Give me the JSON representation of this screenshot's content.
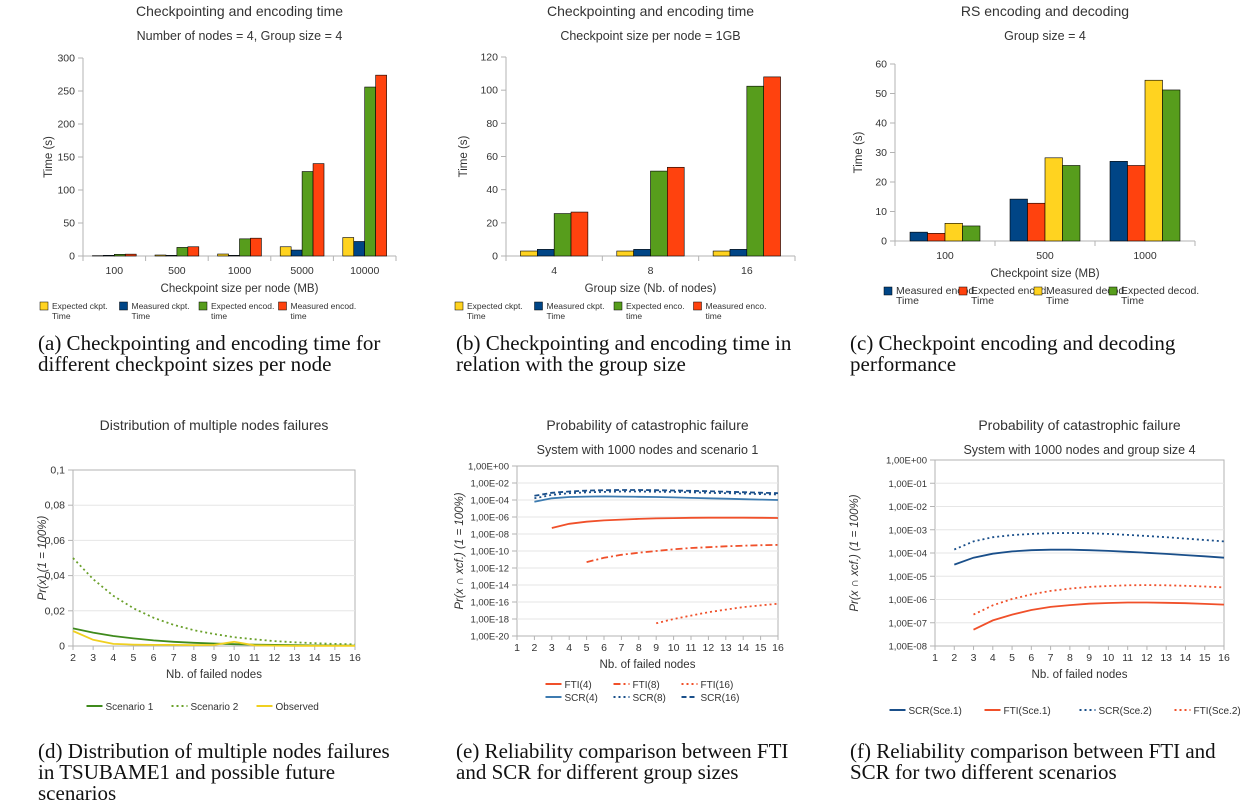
{
  "captions": [
    "(a) Checkpointing and encoding time for different checkpoint sizes per node",
    "(b) Checkpointing and encoding time in relation with the group size",
    "(c) Checkpoint encoding and decoding performance",
    "(d) Distribution of multiple nodes failures in TSUBAME1 and possible future scenarios",
    "(e) Reliability comparison between FTI and SCR for different group sizes",
    "(f) Reliability comparison between FTI and SCR for two different scenarios"
  ],
  "colors": {
    "yellow": "#ffd320",
    "blue": "#004586",
    "green": "#579d1c",
    "red": "#ff420e",
    "dgreen": "#3f8a1c",
    "lgreen": "#6aa02a",
    "lyellow": "#f0d020",
    "fred": "#f0502a",
    "sblue": "#3d7bb0",
    "dblue": "#1a4f8a"
  },
  "chart_data": [
    {
      "type": "bar",
      "title": "Checkpointing and encoding time",
      "subtitle": "Number of nodes = 4, Group size = 4",
      "xlabel": "Checkpoint size per node (MB)",
      "ylabel": "Time (s)",
      "ylim": [
        0,
        300
      ],
      "yticks": [
        "0",
        "50",
        "100",
        "150",
        "200",
        "250",
        "300"
      ],
      "categories": [
        "100",
        "500",
        "1000",
        "5000",
        "10000"
      ],
      "series": [
        {
          "name": "Expected ckpt. Time",
          "color": "#ffd320",
          "values": [
            0.5,
            1.5,
            3,
            14,
            28
          ]
        },
        {
          "name": "Measured ckpt. Time",
          "color": "#004586",
          "values": [
            1,
            1,
            1,
            9,
            22
          ]
        },
        {
          "name": "Expected encod. time",
          "color": "#579d1c",
          "values": [
            2.5,
            13,
            26,
            128,
            256
          ]
        },
        {
          "name": "Measured encod. time",
          "color": "#ff420e",
          "values": [
            2.8,
            14,
            27,
            140,
            274
          ]
        }
      ]
    },
    {
      "type": "bar",
      "title": "Checkpointing and encoding time",
      "subtitle": "Checkpoint size per node = 1GB",
      "xlabel": "Group size (Nb. of nodes)",
      "ylabel": "Time (s)",
      "ylim": [
        0,
        120
      ],
      "yticks": [
        "0",
        "20",
        "40",
        "60",
        "80",
        "100",
        "120"
      ],
      "categories": [
        "4",
        "8",
        "16"
      ],
      "series": [
        {
          "name": "Expected ckpt. Time",
          "color": "#ffd320",
          "values": [
            3,
            3,
            3
          ]
        },
        {
          "name": "Measured ckpt. Time",
          "color": "#004586",
          "values": [
            4,
            4,
            4
          ]
        },
        {
          "name": "Expected enco. time",
          "color": "#579d1c",
          "values": [
            25.6,
            51.2,
            102.4
          ]
        },
        {
          "name": "Measured enco. time",
          "color": "#ff420e",
          "values": [
            26.5,
            53.5,
            108
          ]
        }
      ]
    },
    {
      "type": "bar",
      "title": "RS encoding and decoding",
      "subtitle": "Group size = 4",
      "xlabel": "Checkpoint size (MB)",
      "ylabel": "Time (s)",
      "ylim": [
        0,
        60
      ],
      "yticks": [
        "0",
        "10",
        "20",
        "30",
        "40",
        "50",
        "60"
      ],
      "categories": [
        "100",
        "500",
        "1000"
      ],
      "series": [
        {
          "name": "Measured encod. Time",
          "color": "#004586",
          "values": [
            3,
            14.2,
            27
          ]
        },
        {
          "name": "Expected encod. Time",
          "color": "#ff420e",
          "values": [
            2.6,
            12.8,
            25.6
          ]
        },
        {
          "name": "Measured decod. Time",
          "color": "#ffd320",
          "values": [
            6,
            28.2,
            54.5
          ]
        },
        {
          "name": "Expected decod. Time",
          "color": "#579d1c",
          "values": [
            5.1,
            25.6,
            51.2
          ]
        }
      ]
    },
    {
      "type": "line",
      "title": "Distribution of multiple nodes failures",
      "subtitle": "",
      "xlabel": "Nb. of failed nodes",
      "ylabel": "Pr(x) (1 = 100%)",
      "x": [
        2,
        3,
        4,
        5,
        6,
        7,
        8,
        9,
        10,
        11,
        12,
        13,
        14,
        15,
        16
      ],
      "xticks": [
        "2",
        "3",
        "4",
        "5",
        "6",
        "7",
        "8",
        "9",
        "10",
        "11",
        "12",
        "13",
        "14",
        "15",
        "16"
      ],
      "ylim": [
        0,
        0.1
      ],
      "yticks": [
        "0",
        "0,02",
        "0,04",
        "0,06",
        "0,08",
        "0,1"
      ],
      "series": [
        {
          "name": "Scenario 1",
          "color": "#3f8a1c",
          "dash": "",
          "values": [
            0.01,
            0.0076,
            0.0057,
            0.0043,
            0.0032,
            0.0024,
            0.0018,
            0.0014,
            0.001,
            0.0008,
            0.0006,
            0.00045,
            0.00034,
            0.00026,
            0.0002
          ]
        },
        {
          "name": "Scenario 2",
          "color": "#6aa02a",
          "dash": "2,3",
          "values": [
            0.05,
            0.038,
            0.0285,
            0.0215,
            0.016,
            0.012,
            0.009,
            0.0068,
            0.005,
            0.0038,
            0.0028,
            0.0021,
            0.0016,
            0.0012,
            0.0009
          ]
        },
        {
          "name": "Observed",
          "color": "#f0d020",
          "dash": "",
          "values": [
            0.0085,
            0.0035,
            0.0012,
            0.0008,
            0.0006,
            0.0006,
            0.0005,
            0.0006,
            0.0024,
            0.0004,
            0.0002,
            0.0001,
            0.0001,
            0.0001,
            0.0001
          ]
        }
      ],
      "legend": "bottom"
    },
    {
      "type": "line",
      "title": "Probability of catastrophic failure",
      "subtitle": "System with 1000 nodes and scenario 1",
      "xlabel": "Nb. of failed nodes",
      "ylabel": "Pr(x ∩ xcf.) (1 = 100%)",
      "yscale": "log",
      "x": [
        1,
        2,
        3,
        4,
        5,
        6,
        7,
        8,
        9,
        10,
        11,
        12,
        13,
        14,
        15,
        16
      ],
      "xticks": [
        "1",
        "2",
        "3",
        "4",
        "5",
        "6",
        "7",
        "8",
        "9",
        "10",
        "11",
        "12",
        "13",
        "14",
        "15",
        "16"
      ],
      "ylim": [
        -20,
        0
      ],
      "yticks": [
        "1,00E-20",
        "1,00E-18",
        "1,00E-16",
        "1,00E-14",
        "1,00E-12",
        "1,00E-10",
        "1,00E-08",
        "1,00E-06",
        "1,00E-04",
        "1,00E-02",
        "1,00E+00"
      ],
      "series": [
        {
          "name": "FTI(4)",
          "color": "#f0502a",
          "dash": "",
          "points": [
            [
              3,
              -7.3
            ],
            [
              4,
              -6.8
            ],
            [
              5,
              -6.55
            ],
            [
              6,
              -6.4
            ],
            [
              7,
              -6.3
            ],
            [
              8,
              -6.22
            ],
            [
              9,
              -6.17
            ],
            [
              10,
              -6.13
            ],
            [
              11,
              -6.1
            ],
            [
              12,
              -6.08
            ],
            [
              13,
              -6.08
            ],
            [
              14,
              -6.08
            ],
            [
              15,
              -6.1
            ],
            [
              16,
              -6.12
            ]
          ]
        },
        {
          "name": "FTI(8)",
          "color": "#f0502a",
          "dash": "7,3,2,3",
          "points": [
            [
              5,
              -11.3
            ],
            [
              6,
              -10.8
            ],
            [
              7,
              -10.45
            ],
            [
              8,
              -10.2
            ],
            [
              9,
              -10.0
            ],
            [
              10,
              -9.8
            ],
            [
              11,
              -9.65
            ],
            [
              12,
              -9.55
            ],
            [
              13,
              -9.45
            ],
            [
              14,
              -9.38
            ],
            [
              15,
              -9.32
            ],
            [
              16,
              -9.28
            ]
          ]
        },
        {
          "name": "FTI(16)",
          "color": "#f0502a",
          "dash": "2,3",
          "points": [
            [
              9,
              -18.5
            ],
            [
              10,
              -18.0
            ],
            [
              11,
              -17.6
            ],
            [
              12,
              -17.2
            ],
            [
              13,
              -16.9
            ],
            [
              14,
              -16.6
            ],
            [
              15,
              -16.4
            ],
            [
              16,
              -16.2
            ]
          ]
        },
        {
          "name": "SCR(4)",
          "color": "#3d7bb0",
          "dash": "",
          "points": [
            [
              2,
              -4.2
            ],
            [
              3,
              -3.8
            ],
            [
              4,
              -3.65
            ],
            [
              5,
              -3.6
            ],
            [
              6,
              -3.58
            ],
            [
              7,
              -3.6
            ],
            [
              8,
              -3.62
            ],
            [
              9,
              -3.65
            ],
            [
              10,
              -3.7
            ],
            [
              11,
              -3.75
            ],
            [
              12,
              -3.8
            ],
            [
              13,
              -3.85
            ],
            [
              14,
              -3.9
            ],
            [
              15,
              -3.95
            ],
            [
              16,
              -4.0
            ]
          ]
        },
        {
          "name": "SCR(8)",
          "color": "#1a4f8a",
          "dash": "2,3",
          "points": [
            [
              2,
              -3.8
            ],
            [
              3,
              -3.4
            ],
            [
              4,
              -3.2
            ],
            [
              5,
              -3.1
            ],
            [
              6,
              -3.05
            ],
            [
              7,
              -3.0
            ],
            [
              8,
              -3.0
            ],
            [
              9,
              -3.02
            ],
            [
              10,
              -3.05
            ],
            [
              11,
              -3.1
            ],
            [
              12,
              -3.15
            ],
            [
              13,
              -3.2
            ],
            [
              14,
              -3.25
            ],
            [
              15,
              -3.3
            ],
            [
              16,
              -3.35
            ]
          ]
        },
        {
          "name": "SCR(16)",
          "color": "#1a4f8a",
          "dash": "5,3",
          "points": [
            [
              2,
              -3.5
            ],
            [
              3,
              -3.15
            ],
            [
              4,
              -3.0
            ],
            [
              5,
              -2.9
            ],
            [
              6,
              -2.85
            ],
            [
              7,
              -2.82
            ],
            [
              8,
              -2.82
            ],
            [
              9,
              -2.85
            ],
            [
              10,
              -2.88
            ],
            [
              11,
              -2.92
            ],
            [
              12,
              -2.97
            ],
            [
              13,
              -3.02
            ],
            [
              14,
              -3.08
            ],
            [
              15,
              -3.14
            ],
            [
              16,
              -3.2
            ]
          ]
        }
      ],
      "legend": "bottom"
    },
    {
      "type": "line",
      "title": "Probability of catastrophic failure",
      "subtitle": "System with 1000 nodes and group size 4",
      "xlabel": "Nb. of failed nodes",
      "ylabel": "Pr(x ∩ xcf.) (1 = 100%)",
      "yscale": "log",
      "x": [
        1,
        2,
        3,
        4,
        5,
        6,
        7,
        8,
        9,
        10,
        11,
        12,
        13,
        14,
        15,
        16
      ],
      "xticks": [
        "1",
        "2",
        "3",
        "4",
        "5",
        "6",
        "7",
        "8",
        "9",
        "10",
        "11",
        "12",
        "13",
        "14",
        "15",
        "16"
      ],
      "ylim": [
        -8,
        0
      ],
      "yticks": [
        "1,00E-08",
        "1,00E-07",
        "1,00E-06",
        "1,00E-05",
        "1,00E-04",
        "1,00E-03",
        "1,00E-02",
        "1,00E-01",
        "1,00E+00"
      ],
      "series": [
        {
          "name": "SCR(Sce.1)",
          "color": "#1a4f8a",
          "dash": "",
          "points": [
            [
              2,
              -4.5
            ],
            [
              3,
              -4.2
            ],
            [
              4,
              -4.03
            ],
            [
              5,
              -3.93
            ],
            [
              6,
              -3.88
            ],
            [
              7,
              -3.86
            ],
            [
              8,
              -3.86
            ],
            [
              9,
              -3.88
            ],
            [
              10,
              -3.91
            ],
            [
              11,
              -3.95
            ],
            [
              12,
              -3.99
            ],
            [
              13,
              -4.04
            ],
            [
              14,
              -4.09
            ],
            [
              15,
              -4.14
            ],
            [
              16,
              -4.2
            ]
          ]
        },
        {
          "name": "FTI(Sce.1)",
          "color": "#f0502a",
          "dash": "",
          "points": [
            [
              3,
              -7.3
            ],
            [
              4,
              -6.9
            ],
            [
              5,
              -6.65
            ],
            [
              6,
              -6.45
            ],
            [
              7,
              -6.32
            ],
            [
              8,
              -6.24
            ],
            [
              9,
              -6.18
            ],
            [
              10,
              -6.15
            ],
            [
              11,
              -6.13
            ],
            [
              12,
              -6.13
            ],
            [
              13,
              -6.14
            ],
            [
              14,
              -6.16
            ],
            [
              15,
              -6.19
            ],
            [
              16,
              -6.22
            ]
          ]
        },
        {
          "name": "SCR(Sce.2)",
          "color": "#1a4f8a",
          "dash": "2,3",
          "points": [
            [
              2,
              -3.85
            ],
            [
              3,
              -3.5
            ],
            [
              4,
              -3.32
            ],
            [
              5,
              -3.23
            ],
            [
              6,
              -3.18
            ],
            [
              7,
              -3.15
            ],
            [
              8,
              -3.14
            ],
            [
              9,
              -3.15
            ],
            [
              10,
              -3.18
            ],
            [
              11,
              -3.22
            ],
            [
              12,
              -3.27
            ],
            [
              13,
              -3.32
            ],
            [
              14,
              -3.38
            ],
            [
              15,
              -3.44
            ],
            [
              16,
              -3.5
            ]
          ]
        },
        {
          "name": "FTI(Sce.2)",
          "color": "#f0502a",
          "dash": "2,3",
          "points": [
            [
              3,
              -6.65
            ],
            [
              4,
              -6.25
            ],
            [
              5,
              -5.98
            ],
            [
              6,
              -5.78
            ],
            [
              7,
              -5.63
            ],
            [
              8,
              -5.53
            ],
            [
              9,
              -5.46
            ],
            [
              10,
              -5.42
            ],
            [
              11,
              -5.39
            ],
            [
              12,
              -5.38
            ],
            [
              13,
              -5.39
            ],
            [
              14,
              -5.41
            ],
            [
              15,
              -5.44
            ],
            [
              16,
              -5.48
            ]
          ]
        }
      ],
      "legend": "bottom"
    }
  ]
}
